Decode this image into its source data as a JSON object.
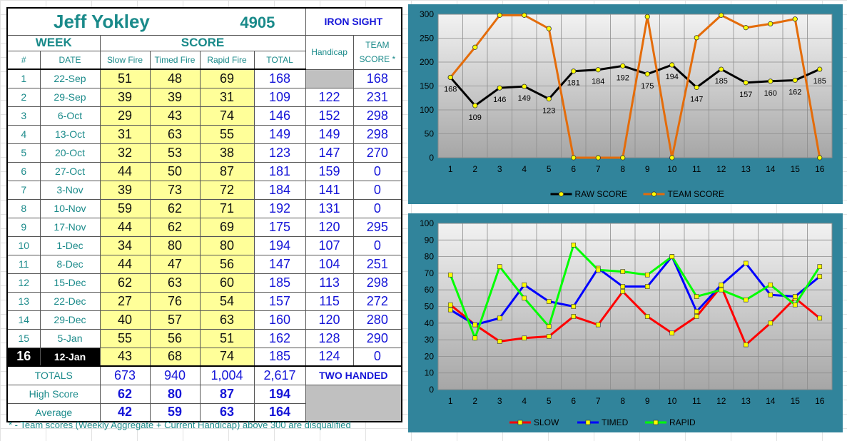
{
  "header": {
    "name": "Jeff Yokley",
    "id_number": "4905",
    "team": "IRON SIGHT",
    "week_label": "WEEK",
    "score_label": "SCORE",
    "col_num": "#",
    "col_date": "DATE",
    "col_slow": "Slow Fire",
    "col_timed": "Timed Fire",
    "col_rapid": "Rapid Fire",
    "col_total": "TOTAL",
    "col_handicap": "Handicap",
    "col_team1": "TEAM",
    "col_team2": "SCORE *"
  },
  "rows": [
    {
      "n": "1",
      "date": "22-Sep",
      "slow": "51",
      "timed": "48",
      "rapid": "69",
      "total": "168",
      "handicap": "",
      "team": "168"
    },
    {
      "n": "2",
      "date": "29-Sep",
      "slow": "39",
      "timed": "39",
      "rapid": "31",
      "total": "109",
      "handicap": "122",
      "team": "231"
    },
    {
      "n": "3",
      "date": "6-Oct",
      "slow": "29",
      "timed": "43",
      "rapid": "74",
      "total": "146",
      "handicap": "152",
      "team": "298"
    },
    {
      "n": "4",
      "date": "13-Oct",
      "slow": "31",
      "timed": "63",
      "rapid": "55",
      "total": "149",
      "handicap": "149",
      "team": "298"
    },
    {
      "n": "5",
      "date": "20-Oct",
      "slow": "32",
      "timed": "53",
      "rapid": "38",
      "total": "123",
      "handicap": "147",
      "team": "270"
    },
    {
      "n": "6",
      "date": "27-Oct",
      "slow": "44",
      "timed": "50",
      "rapid": "87",
      "total": "181",
      "handicap": "159",
      "team": "0"
    },
    {
      "n": "7",
      "date": "3-Nov",
      "slow": "39",
      "timed": "73",
      "rapid": "72",
      "total": "184",
      "handicap": "141",
      "team": "0"
    },
    {
      "n": "8",
      "date": "10-Nov",
      "slow": "59",
      "timed": "62",
      "rapid": "71",
      "total": "192",
      "handicap": "131",
      "team": "0"
    },
    {
      "n": "9",
      "date": "17-Nov",
      "slow": "44",
      "timed": "62",
      "rapid": "69",
      "total": "175",
      "handicap": "120",
      "team": "295"
    },
    {
      "n": "10",
      "date": "1-Dec",
      "slow": "34",
      "timed": "80",
      "rapid": "80",
      "total": "194",
      "handicap": "107",
      "team": "0"
    },
    {
      "n": "11",
      "date": "8-Dec",
      "slow": "44",
      "timed": "47",
      "rapid": "56",
      "total": "147",
      "handicap": "104",
      "team": "251"
    },
    {
      "n": "12",
      "date": "15-Dec",
      "slow": "62",
      "timed": "63",
      "rapid": "60",
      "total": "185",
      "handicap": "113",
      "team": "298"
    },
    {
      "n": "13",
      "date": "22-Dec",
      "slow": "27",
      "timed": "76",
      "rapid": "54",
      "total": "157",
      "handicap": "115",
      "team": "272"
    },
    {
      "n": "14",
      "date": "29-Dec",
      "slow": "40",
      "timed": "57",
      "rapid": "63",
      "total": "160",
      "handicap": "120",
      "team": "280"
    },
    {
      "n": "15",
      "date": "5-Jan",
      "slow": "55",
      "timed": "56",
      "rapid": "51",
      "total": "162",
      "handicap": "128",
      "team": "290"
    },
    {
      "n": "16",
      "date": "12-Jan",
      "slow": "43",
      "timed": "68",
      "rapid": "74",
      "total": "185",
      "handicap": "124",
      "team": "0"
    }
  ],
  "totals": {
    "label": "TOTALS",
    "slow": "673",
    "timed": "940",
    "rapid": "1,004",
    "total": "2,617",
    "note": "TWO HANDED"
  },
  "high": {
    "label": "High Score",
    "slow": "62",
    "timed": "80",
    "rapid": "87",
    "total": "194"
  },
  "average": {
    "label": "Average",
    "slow": "42",
    "timed": "59",
    "rapid": "63",
    "total": "164"
  },
  "footnote": "* - Team scores (Weekly Aggregate + Current Handicap) above 300 are disqualified",
  "chart_data": [
    {
      "type": "line",
      "x": [
        1,
        2,
        3,
        4,
        5,
        6,
        7,
        8,
        9,
        10,
        11,
        12,
        13,
        14,
        15,
        16
      ],
      "ylim": [
        0,
        300
      ],
      "yticks": [
        0,
        50,
        100,
        150,
        200,
        250,
        300
      ],
      "grid": true,
      "legend": "bottom",
      "series": [
        {
          "name": "RAW SCORE",
          "color": "#000000",
          "values": [
            168,
            109,
            146,
            149,
            123,
            181,
            184,
            192,
            175,
            194,
            147,
            185,
            157,
            160,
            162,
            185
          ],
          "data_labels": true
        },
        {
          "name": "TEAM SCORE",
          "color": "#e46c0a",
          "values": [
            168,
            231,
            298,
            298,
            270,
            0,
            0,
            0,
            295,
            0,
            251,
            298,
            272,
            280,
            290,
            0
          ],
          "data_labels": false
        }
      ]
    },
    {
      "type": "line",
      "x": [
        1,
        2,
        3,
        4,
        5,
        6,
        7,
        8,
        9,
        10,
        11,
        12,
        13,
        14,
        15,
        16
      ],
      "ylim": [
        0,
        100
      ],
      "yticks": [
        0,
        10,
        20,
        30,
        40,
        50,
        60,
        70,
        80,
        90,
        100
      ],
      "grid": true,
      "legend": "bottom",
      "series": [
        {
          "name": "SLOW",
          "color": "#ff0000",
          "values": [
            51,
            39,
            29,
            31,
            32,
            44,
            39,
            59,
            44,
            34,
            44,
            62,
            27,
            40,
            55,
            43
          ]
        },
        {
          "name": "TIMED",
          "color": "#0000ff",
          "values": [
            48,
            39,
            43,
            63,
            53,
            50,
            73,
            62,
            62,
            80,
            47,
            63,
            76,
            57,
            56,
            68
          ]
        },
        {
          "name": "RAPID",
          "color": "#00ff00",
          "values": [
            69,
            31,
            74,
            55,
            38,
            87,
            72,
            71,
            69,
            80,
            56,
            60,
            54,
            63,
            51,
            74
          ]
        }
      ]
    }
  ]
}
